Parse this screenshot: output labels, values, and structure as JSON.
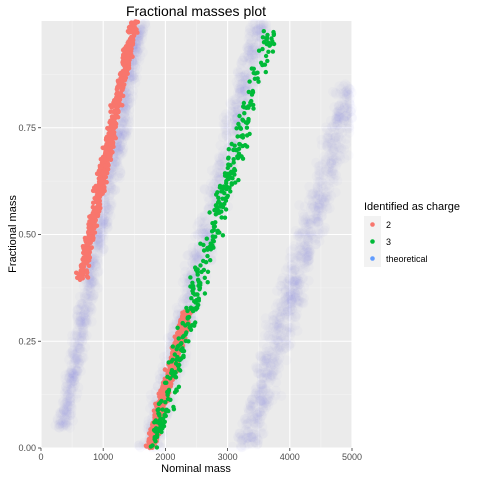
{
  "chart_data": {
    "type": "scatter",
    "title": "Fractional masses plot",
    "xlabel": "Nominal mass",
    "ylabel": "Fractional mass",
    "xlim": [
      0,
      5000
    ],
    "ylim": [
      0,
      1
    ],
    "x_ticks": [
      0,
      1000,
      2000,
      3000,
      4000,
      5000
    ],
    "x_tick_labels": [
      "0",
      "1000",
      "2000",
      "3000",
      "4000",
      "5000"
    ],
    "y_ticks": [
      0,
      0.25,
      0.5,
      0.75
    ],
    "y_tick_labels": [
      "0.00",
      "0.25",
      "0.50",
      "0.75"
    ],
    "grid": true,
    "legend": {
      "title": "Identified as charge",
      "placement": "right",
      "entries": [
        {
          "label": "2",
          "color": "#f8766d"
        },
        {
          "label": "3",
          "color": "#00ba38"
        },
        {
          "label": "theoretical",
          "color": "#619cff"
        }
      ]
    },
    "series": [
      {
        "label_ref": "theoretical",
        "color": "#8080f0",
        "bands": [
          {
            "x_start": 350,
            "x_end": 1600,
            "y_start": 0.05,
            "y_end": 1.0,
            "width": 180
          },
          {
            "x_start": 1750,
            "x_end": 3550,
            "y_start": 0.0,
            "y_end": 1.0,
            "width": 260
          },
          {
            "x_start": 3300,
            "x_end": 5000,
            "y_start": 0.0,
            "y_end": 0.85,
            "width": 320
          }
        ]
      },
      {
        "label_ref": "2",
        "color": "#f8766d",
        "bands": [
          {
            "x_start": 650,
            "x_end": 1500,
            "y_start": 0.4,
            "y_end": 1.0,
            "width": 110
          },
          {
            "x_start": 1750,
            "x_end": 2350,
            "y_start": 0.0,
            "y_end": 0.32,
            "width": 110
          }
        ]
      },
      {
        "label_ref": "3",
        "color": "#00ba38",
        "bands": [
          {
            "x_start": 1800,
            "x_end": 3700,
            "y_start": 0.0,
            "y_end": 0.98,
            "width": 200
          }
        ]
      }
    ]
  }
}
